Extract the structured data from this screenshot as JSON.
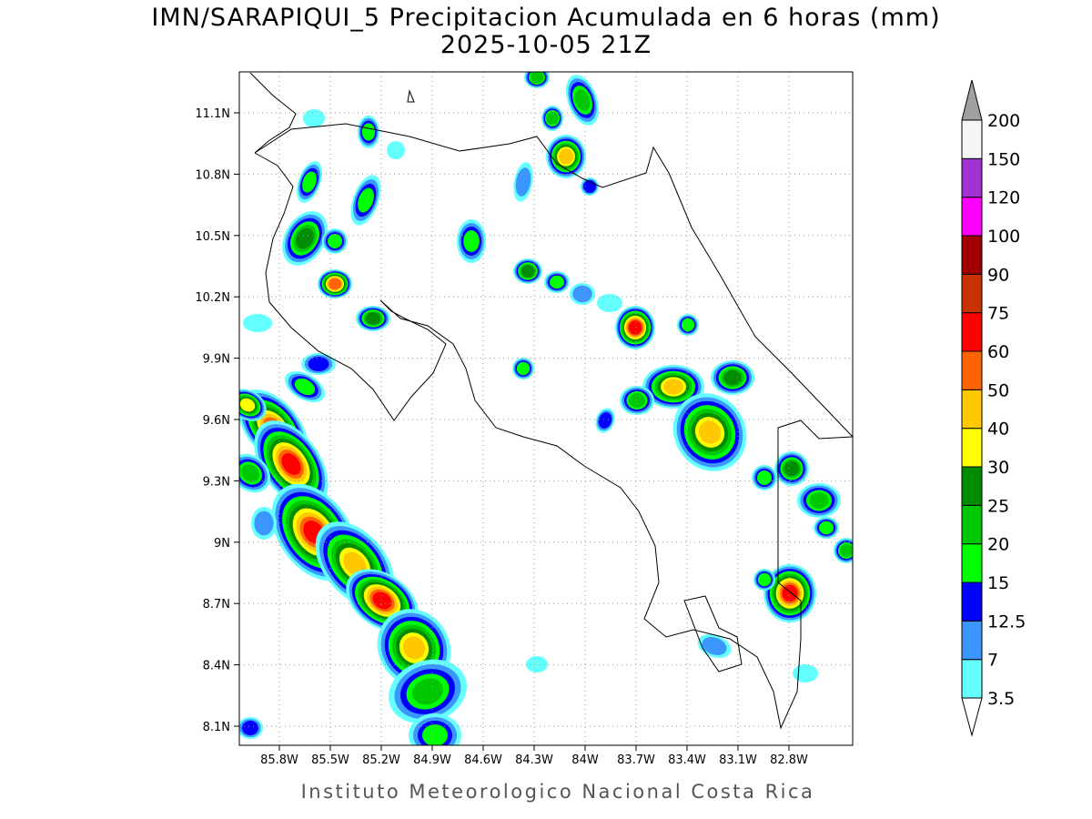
{
  "title": [
    "IMN/SARAPIQUI_5 Precipitacion Acumulada en 6 horas (mm)",
    "2025-10-05 21Z"
  ],
  "lat_labels": [
    "11.1N",
    "10.8N",
    "10.5N",
    "10.2N",
    "9.9N",
    "9.6N",
    "9.3N",
    "9N",
    "8.7N",
    "8.4N",
    "8.1N"
  ],
  "lon_labels": [
    "85.8W",
    "85.5W",
    "85.2W",
    "84.9W",
    "84.6W",
    "84.3W",
    "84W",
    "83.7W",
    "83.4W",
    "83.1W",
    "82.8W"
  ],
  "colorbar": {
    "levels": [
      3.5,
      7,
      12.5,
      15,
      20,
      25,
      30,
      40,
      50,
      60,
      75,
      90,
      100,
      120,
      150,
      200
    ],
    "colors": [
      "#64ffff",
      "#3c96ff",
      "#0000ff",
      "#00ff00",
      "#00c800",
      "#008c00",
      "#ffff00",
      "#ffc800",
      "#ff6400",
      "#ff0000",
      "#c83200",
      "#a00000",
      "#ff00ff",
      "#a032d2",
      "#f5f5f5"
    ],
    "under_color": "#ffffff",
    "over_color": "#a0a0a0"
  },
  "footer": "Instituto Meteorologico Nacional Costa Rica"
}
